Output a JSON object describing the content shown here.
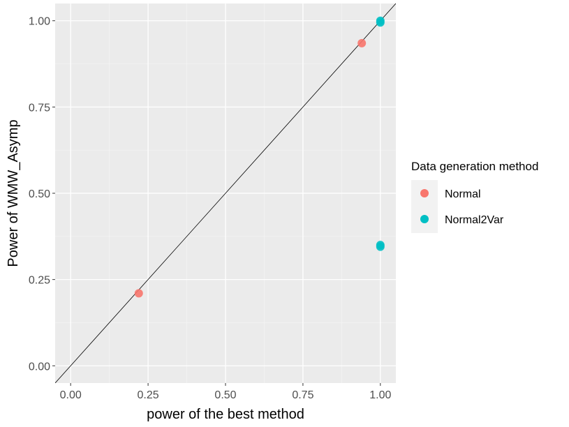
{
  "chart_data": {
    "type": "scatter",
    "xlabel": "power of the best method",
    "ylabel": "Power of WMW_Asymp",
    "xlim": [
      -0.05,
      1.05
    ],
    "ylim": [
      -0.05,
      1.05
    ],
    "x_ticks": [
      0.0,
      0.25,
      0.5,
      0.75,
      1.0
    ],
    "y_ticks": [
      0.0,
      0.25,
      0.5,
      0.75,
      1.0
    ],
    "x_tick_labels": [
      "0.00",
      "0.25",
      "0.50",
      "0.75",
      "1.00"
    ],
    "y_tick_labels": [
      "0.00",
      "0.25",
      "0.50",
      "0.75",
      "1.00"
    ],
    "grid": true,
    "reference_line": "y = x",
    "legend": {
      "title": "Data generation method",
      "placement": "right"
    },
    "series": [
      {
        "name": "Normal",
        "color": "#F8766D",
        "points": [
          {
            "x": 0.22,
            "y": 0.21
          },
          {
            "x": 0.94,
            "y": 0.935
          }
        ]
      },
      {
        "name": "Normal2Var",
        "color": "#00BFC4",
        "points": [
          {
            "x": 1.0,
            "y": 1.0
          },
          {
            "x": 1.0,
            "y": 0.995
          },
          {
            "x": 1.0,
            "y": 0.35
          },
          {
            "x": 1.0,
            "y": 0.345
          }
        ]
      }
    ]
  }
}
